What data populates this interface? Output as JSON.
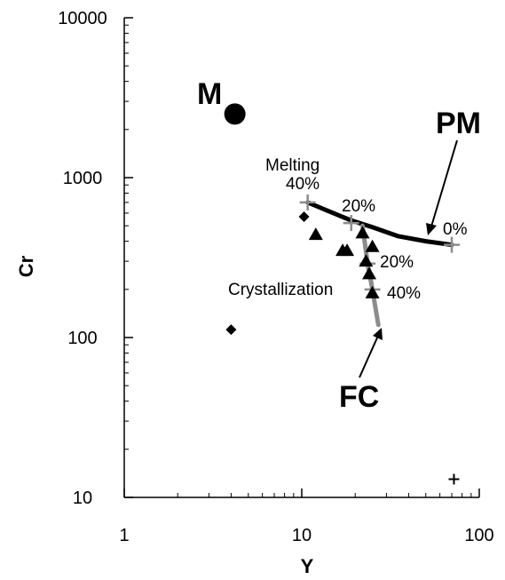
{
  "chart_data": {
    "type": "scatter",
    "title": "",
    "xlabel": "Y",
    "ylabel": "Cr",
    "x_scale": "log",
    "y_scale": "log",
    "xlim": [
      1,
      100
    ],
    "ylim": [
      10,
      10000
    ],
    "x_tick_labels": [
      "1",
      "10",
      "100"
    ],
    "y_tick_labels": [
      "10",
      "100",
      "1000",
      "10000"
    ],
    "colors": {
      "axis": "#000000",
      "melting_curve": "#000000",
      "crystallization_curve": "#8c8c8c",
      "cross_marker": "#8c8c8c"
    },
    "series": [
      {
        "marker": "circle",
        "points": [
          {
            "x": 4.2,
            "y": 2500
          }
        ]
      },
      {
        "marker": "diamond",
        "points": [
          {
            "x": 10.3,
            "y": 570
          },
          {
            "x": 4.0,
            "y": 112
          }
        ]
      },
      {
        "marker": "triangle",
        "points": [
          {
            "x": 12,
            "y": 440
          },
          {
            "x": 17,
            "y": 350
          },
          {
            "x": 18,
            "y": 350
          },
          {
            "x": 22,
            "y": 450
          },
          {
            "x": 23,
            "y": 300
          },
          {
            "x": 24,
            "y": 250
          },
          {
            "x": 25,
            "y": 370
          },
          {
            "x": 25,
            "y": 190
          }
        ]
      },
      {
        "marker": "plus",
        "points": [
          {
            "x": 72,
            "y": 13
          }
        ]
      }
    ],
    "curves": [
      {
        "name": "Melting",
        "line_color": "#000000",
        "points": [
          {
            "x": 70,
            "y": 380
          },
          {
            "x": 50,
            "y": 400
          },
          {
            "x": 35,
            "y": 430
          },
          {
            "x": 25,
            "y": 490
          },
          {
            "x": 19,
            "y": 540
          },
          {
            "x": 14,
            "y": 620
          },
          {
            "x": 10.8,
            "y": 700
          }
        ],
        "tick_marks": [
          {
            "x": 70,
            "y": 380
          },
          {
            "x": 19,
            "y": 520
          },
          {
            "x": 10.8,
            "y": 700
          }
        ]
      },
      {
        "name": "Crystallization",
        "line_color": "#8c8c8c",
        "points": [
          {
            "x": 22,
            "y": 500
          },
          {
            "x": 23.5,
            "y": 290
          },
          {
            "x": 25,
            "y": 200
          },
          {
            "x": 27,
            "y": 120
          }
        ],
        "tick_marks": [
          {
            "x": 23.5,
            "y": 290
          },
          {
            "x": 25,
            "y": 200
          }
        ]
      }
    ],
    "annotations": {
      "m": "M",
      "pm": "PM",
      "fc": "FC",
      "melting": "Melting",
      "melt_40": "40%",
      "melt_20": "20%",
      "melt_0": "0%",
      "crystallization": "Crystallization",
      "cryst_20": "20%",
      "cryst_40": "40%"
    }
  }
}
